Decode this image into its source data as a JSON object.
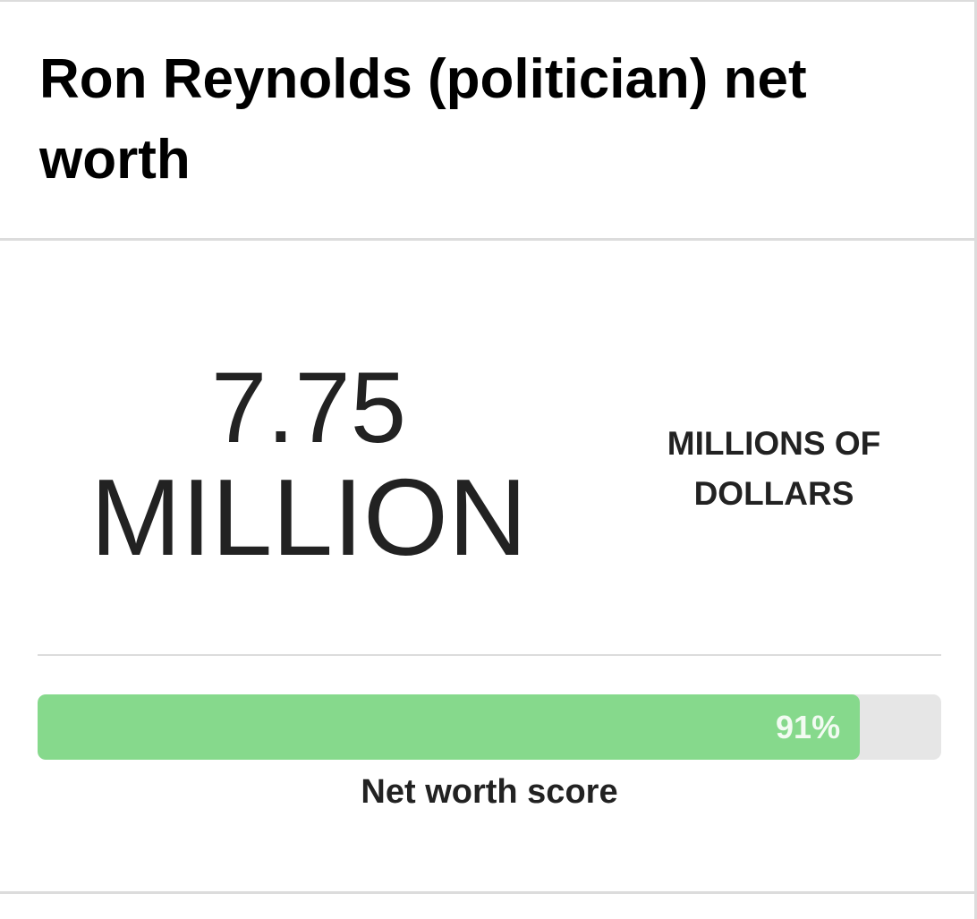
{
  "header": {
    "title": "Ron Reynolds (politician) net worth"
  },
  "net_worth": {
    "value": 7.75,
    "scale": "MILLION",
    "unit": "MILLIONS OF DOLLARS"
  },
  "score": {
    "value": 91,
    "label": "91%",
    "range": [
      0,
      100
    ],
    "caption": "Net worth score",
    "color": "#86d98c"
  }
}
